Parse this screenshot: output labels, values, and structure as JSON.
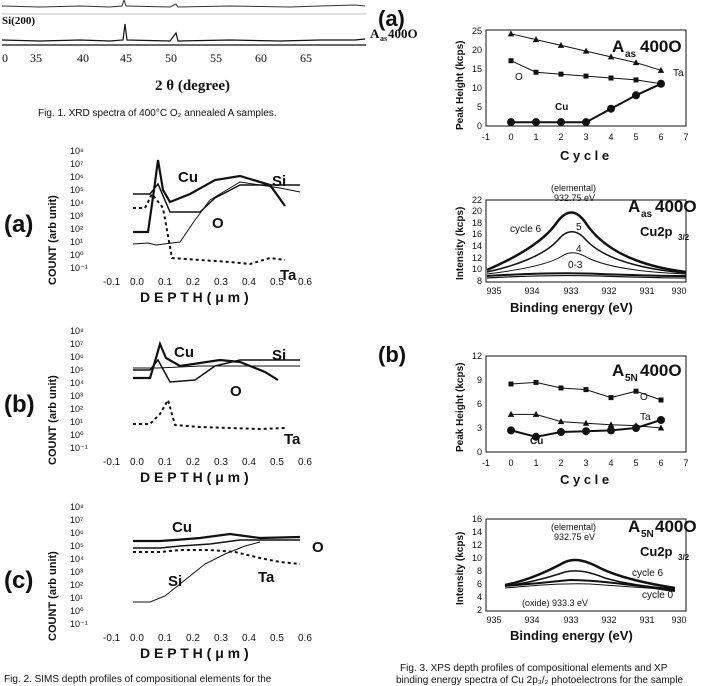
{
  "fig1": {
    "trace_labels": [
      "Si(200)",
      "A",
      "as",
      "400O"
    ],
    "x_ticks": [
      "0",
      "35",
      "40",
      "45",
      "50",
      "55",
      "60",
      "65"
    ],
    "x_label": "2 θ (degree)",
    "caption": "Fig. 1. XRD spectra of 400°C O₂ annealed A samples."
  },
  "fig2": {
    "y_ticks": [
      "10⁸",
      "10⁷",
      "10⁶",
      "10⁵",
      "10⁴",
      "10³",
      "10²",
      "10¹",
      "10⁰",
      "10⁻¹"
    ],
    "x_ticks": [
      "-0.1",
      "0.0",
      "0.1",
      "0.2",
      "0.3",
      "0.4",
      "0.5",
      "0.6"
    ],
    "y_label": "COUNT (arb unit)",
    "x_label": "D E P T H ( μ m )",
    "panels": [
      {
        "tag": "(a)",
        "labels": [
          "Cu",
          "Si",
          "O",
          "Ta"
        ]
      },
      {
        "tag": "(b)",
        "labels": [
          "Cu",
          "Si",
          "O",
          "Ta"
        ]
      },
      {
        "tag": "(c)",
        "labels": [
          "Cu",
          "O",
          "Si",
          "Ta"
        ]
      }
    ],
    "caption": "Fig. 2. SIMS depth profiles of compositional elements for the"
  },
  "fig3": {
    "panel_a": "(a)",
    "panel_b": "(b)",
    "peak_ylabel": "Peak Height (kcps)",
    "cycle_xlabel": "C y c l e",
    "cycle_ticks": [
      "-1",
      "0",
      "1",
      "2",
      "3",
      "4",
      "5",
      "6",
      "7"
    ],
    "int_ylabel": "Intensity (kcps)",
    "be_xlabel": "Binding energy (eV)",
    "be_ticks": [
      "935",
      "934",
      "933",
      "932",
      "931",
      "930"
    ],
    "a_peak": {
      "sample": "A",
      "sub": "as",
      "suffix": "400O",
      "y_ticks": [
        "0",
        "5",
        "10",
        "15",
        "20",
        "25"
      ],
      "labels": [
        "Ta",
        "O",
        "Cu"
      ]
    },
    "a_xps": {
      "sample": "A",
      "sub": "as",
      "suffix": "400O",
      "line": "Cu2p",
      "line_sub": "3/2",
      "y_ticks": [
        "8",
        "10",
        "12",
        "14",
        "16",
        "18",
        "20",
        "22"
      ],
      "elemental": "(elemental)",
      "elemental_ev": "932.75 eV",
      "cycle_labels": [
        "cycle 6",
        "5",
        "4",
        "0-3"
      ]
    },
    "b_peak": {
      "sample": "A",
      "sub": "5N",
      "suffix": "400O",
      "y_ticks": [
        "0",
        "3",
        "6",
        "9",
        "12"
      ],
      "labels": [
        "O",
        "Ta",
        "Cu"
      ]
    },
    "b_xps": {
      "sample": "A",
      "sub": "5N",
      "suffix": "400O",
      "line": "Cu2p",
      "line_sub": "3/2",
      "y_ticks": [
        "2",
        "4",
        "6",
        "8",
        "10",
        "12",
        "14",
        "16"
      ],
      "elemental": "(elemental)",
      "elemental_ev": "932.75 eV",
      "oxide": "(oxide) 933.3 eV",
      "cycle_labels": [
        "cycle 6",
        "cycle 0"
      ]
    },
    "caption_line1": "Fig. 3. XPS depth profiles of compositional elements and XP",
    "caption_line2": "binding energy spectra of Cu 2p₃/₂ photoelectrons for the sample"
  },
  "chart_data": [
    {
      "type": "line",
      "title": "A as 400O",
      "xlabel": "Cycle",
      "ylabel": "Peak Height (kcps)",
      "xlim": [
        -1,
        7
      ],
      "ylim": [
        0,
        25
      ],
      "x": [
        0,
        1,
        2,
        3,
        4,
        5,
        6
      ],
      "series": [
        {
          "name": "Ta",
          "values": [
            24,
            22.5,
            21,
            19.5,
            18,
            16.5,
            14.5
          ]
        },
        {
          "name": "O",
          "values": [
            17,
            14,
            13.5,
            13,
            12.5,
            12,
            11
          ]
        },
        {
          "name": "Cu",
          "values": [
            1,
            1,
            1,
            1,
            4.5,
            8,
            11
          ]
        }
      ]
    },
    {
      "type": "line",
      "title": "A 5N 400O",
      "xlabel": "Cycle",
      "ylabel": "Peak Height (kcps)",
      "xlim": [
        -1,
        7
      ],
      "ylim": [
        0,
        12
      ],
      "x": [
        0,
        1,
        2,
        3,
        4,
        5,
        6
      ],
      "series": [
        {
          "name": "O",
          "values": [
            8.5,
            8.7,
            8.0,
            7.8,
            6.8,
            7.6,
            6.5
          ]
        },
        {
          "name": "Ta",
          "values": [
            4.7,
            4.7,
            3.8,
            3.6,
            3.4,
            3.3,
            3.0
          ]
        },
        {
          "name": "Cu",
          "values": [
            2.7,
            1.9,
            2.5,
            2.6,
            2.7,
            3.0,
            4.0
          ]
        }
      ]
    }
  ]
}
